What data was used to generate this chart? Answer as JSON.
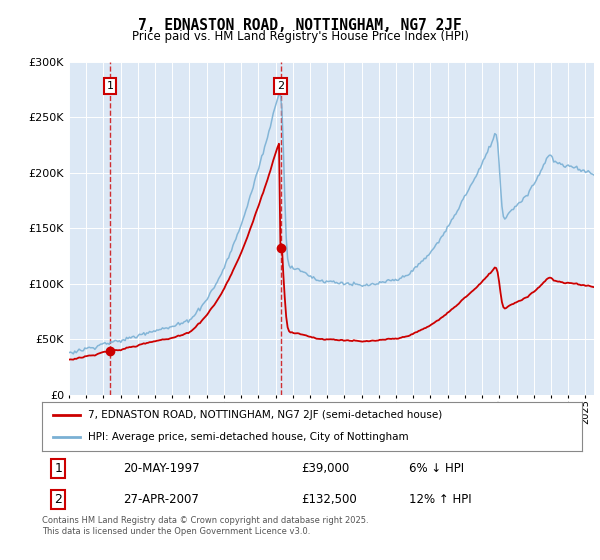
{
  "title": "7, EDNASTON ROAD, NOTTINGHAM, NG7 2JF",
  "subtitle": "Price paid vs. HM Land Registry's House Price Index (HPI)",
  "sale1_year": 1997.375,
  "sale1_price": 39000,
  "sale1_pct": 0.94,
  "sale2_year": 2007.29,
  "sale2_price": 132500,
  "sale2_pct": 1.12,
  "legend_line1": "7, EDNASTON ROAD, NOTTINGHAM, NG7 2JF (semi-detached house)",
  "legend_line2": "HPI: Average price, semi-detached house, City of Nottingham",
  "table_row1": [
    "1",
    "20-MAY-1997",
    "£39,000",
    "6% ↓ HPI"
  ],
  "table_row2": [
    "2",
    "27-APR-2007",
    "£132,500",
    "12% ↑ HPI"
  ],
  "footer": "Contains HM Land Registry data © Crown copyright and database right 2025.\nThis data is licensed under the Open Government Licence v3.0.",
  "ylim": [
    0,
    300000
  ],
  "yticks": [
    0,
    50000,
    100000,
    150000,
    200000,
    250000,
    300000
  ],
  "xlim_start": 1995.0,
  "xlim_end": 2025.5,
  "plot_bg_color": "#dce8f5",
  "line_red": "#cc0000",
  "line_blue": "#7ab0d4"
}
